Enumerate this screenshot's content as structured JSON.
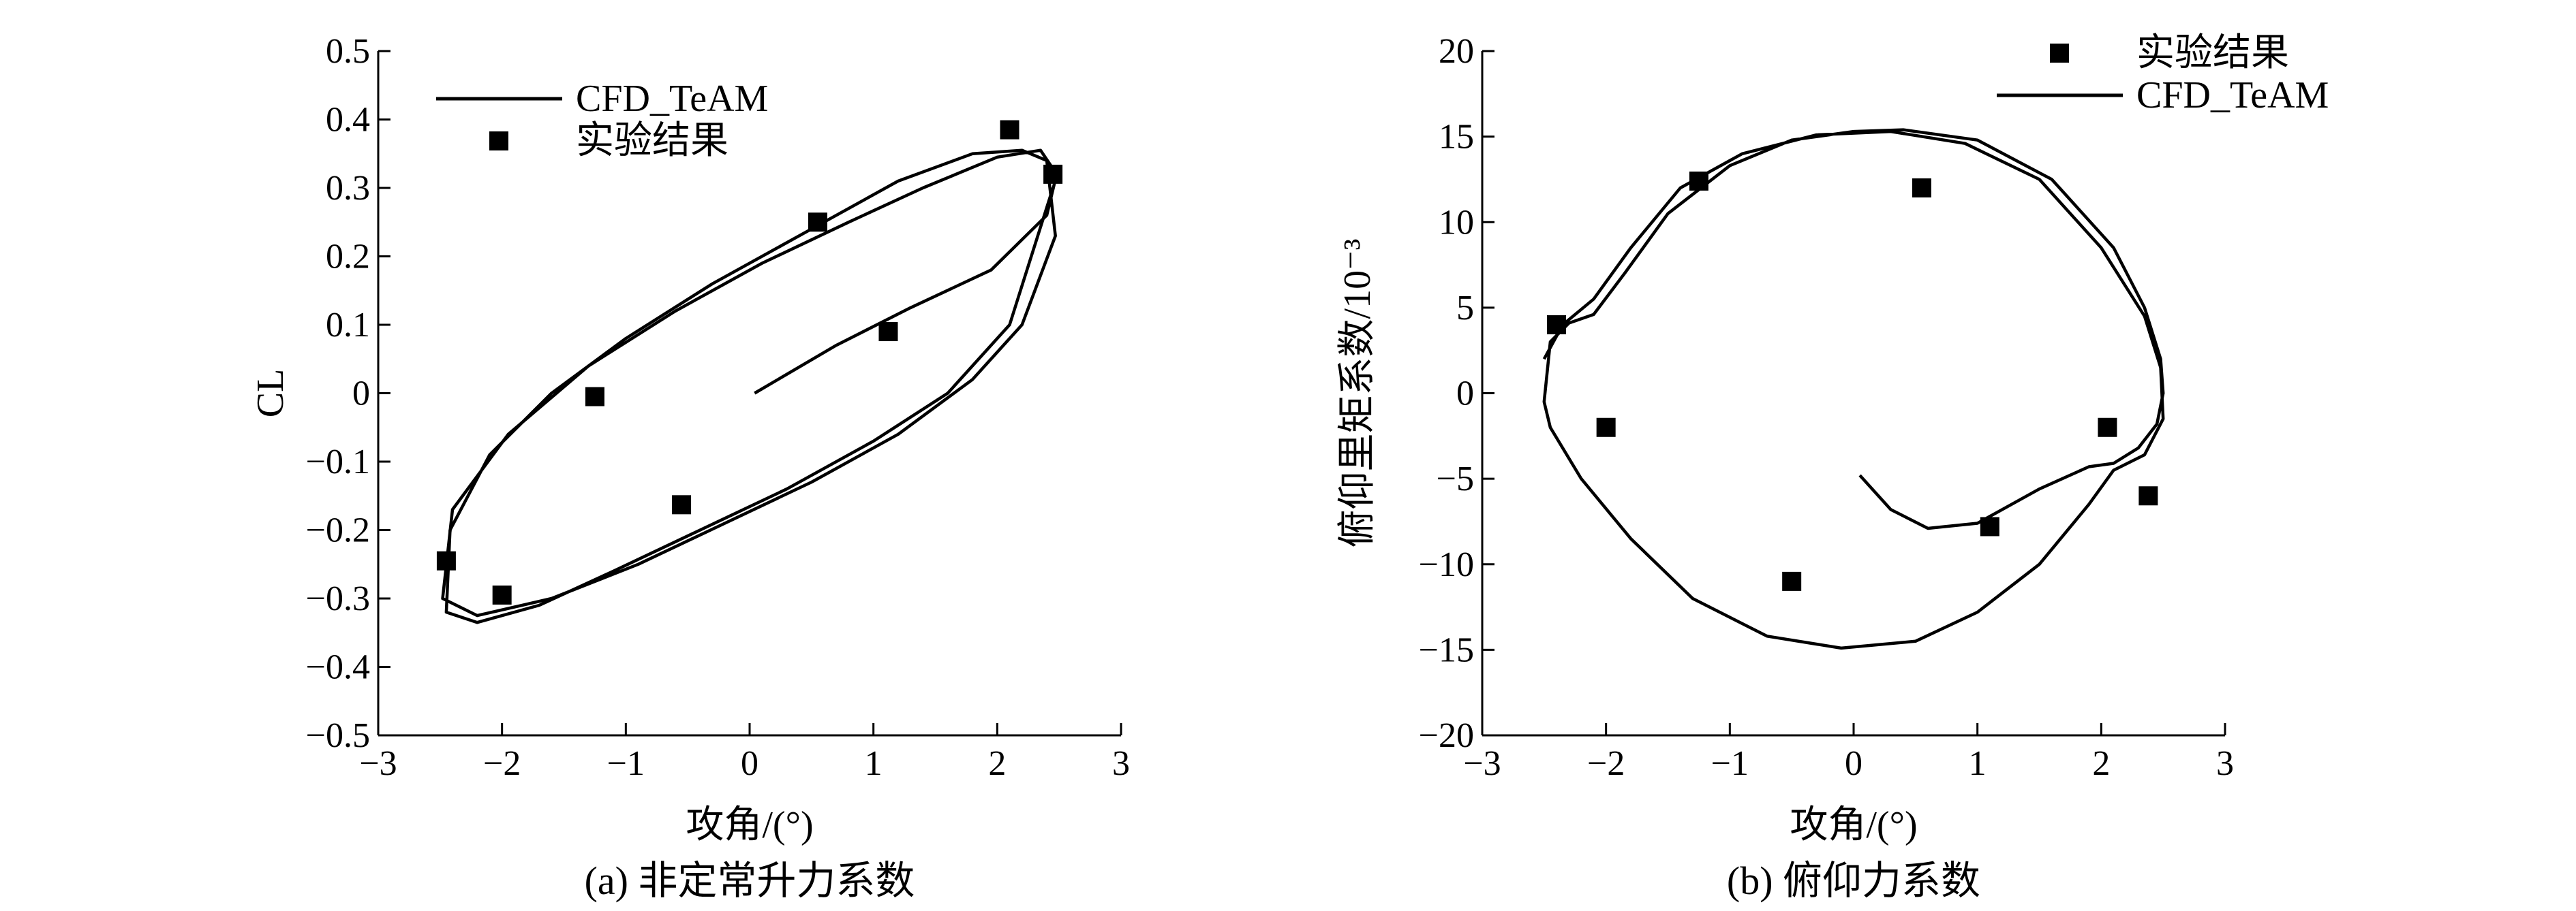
{
  "chart_data": [
    {
      "type": "line",
      "caption": "(a) 非定常升力系数",
      "xlabel": "攻角/(°)",
      "ylabel": "CL",
      "xlim": [
        -3,
        3
      ],
      "ylim": [
        -0.5,
        0.5
      ],
      "x_ticks": [
        -3,
        -2,
        -1,
        0,
        1,
        2,
        3
      ],
      "x_tick_labels": [
        "−3",
        "−2",
        "−1",
        "0",
        "1",
        "2",
        "3"
      ],
      "y_ticks": [
        0.5,
        0.4,
        0.3,
        0.2,
        0.1,
        0,
        -0.1,
        -0.2,
        -0.3,
        -0.4,
        -0.5
      ],
      "y_tick_labels": [
        "0.5",
        "0.4",
        "0.3",
        "0.2",
        "0.1",
        "0",
        "−0.1",
        "−0.2",
        "−0.3",
        "−0.4",
        "−0.5"
      ],
      "legend": [
        "CFD_TeAM",
        "实验结果"
      ],
      "legend_position": "top-left",
      "series": [
        {
          "name": "CFD_TeAM",
          "style": "line",
          "x": [
            0.04,
            0.7,
            1.3,
            1.95,
            2.4,
            2.48,
            2.35,
            2.0,
            1.4,
            0.8,
            0.1,
            -0.6,
            -1.3,
            -1.95,
            -2.4,
            -2.48,
            -2.2,
            -1.6,
            -0.9,
            -0.2,
            0.5,
            1.2,
            1.8,
            2.2,
            2.47,
            2.4,
            2.2,
            1.8,
            1.2,
            0.5,
            -0.3,
            -1.0,
            -1.6,
            -2.1,
            -2.42,
            -2.45,
            -2.2,
            -1.7,
            -1.1,
            -0.4,
            0.3,
            1.0,
            1.6,
            2.1,
            2.45
          ],
          "y": [
            0.0,
            0.07,
            0.125,
            0.18,
            0.26,
            0.32,
            0.355,
            0.345,
            0.3,
            0.25,
            0.19,
            0.12,
            0.04,
            -0.06,
            -0.17,
            -0.3,
            -0.325,
            -0.3,
            -0.25,
            -0.19,
            -0.13,
            -0.06,
            0.02,
            0.1,
            0.23,
            0.34,
            0.355,
            0.35,
            0.31,
            0.24,
            0.16,
            0.08,
            0.0,
            -0.09,
            -0.2,
            -0.32,
            -0.335,
            -0.31,
            -0.26,
            -0.2,
            -0.14,
            -0.07,
            0.0,
            0.1,
            0.3
          ]
        },
        {
          "name": "实验结果",
          "style": "markers",
          "x": [
            -2.45,
            -2.0,
            -1.25,
            -0.55,
            0.55,
            1.12,
            2.1,
            2.45
          ],
          "y": [
            -0.245,
            -0.295,
            -0.005,
            -0.163,
            0.25,
            0.09,
            0.385,
            0.32
          ]
        }
      ]
    },
    {
      "type": "line",
      "caption": "(b) 俯仰力系数",
      "xlabel": "攻角/(°)",
      "ylabel": "俯仰里矩系数/10⁻³",
      "xlim": [
        -3,
        3
      ],
      "ylim": [
        -20,
        20
      ],
      "x_ticks": [
        -3,
        -2,
        -1,
        0,
        1,
        2,
        3
      ],
      "x_tick_labels": [
        "−3",
        "−2",
        "−1",
        "0",
        "1",
        "2",
        "3"
      ],
      "y_ticks": [
        20,
        15,
        10,
        5,
        0,
        -5,
        -10,
        -15,
        -20
      ],
      "y_tick_labels": [
        "20",
        "15",
        "10",
        "5",
        "0",
        "−5",
        "−10",
        "−15",
        "−20"
      ],
      "legend": [
        "实验结果",
        "CFD_TeAM"
      ],
      "legend_position": "top-right",
      "series": [
        {
          "name": "CFD_TeAM",
          "style": "line",
          "x": [
            0.05,
            0.3,
            0.6,
            1.0,
            1.5,
            1.9,
            2.1,
            2.3,
            2.45,
            2.5,
            2.48,
            2.35,
            2.1,
            1.6,
            1.0,
            0.4,
            0.0,
            -0.5,
            -1.0,
            -1.5,
            -1.85,
            -2.1,
            -2.3,
            -2.45,
            -2.5,
            -2.45,
            -2.2,
            -1.8,
            -1.3,
            -0.7,
            -0.1,
            0.5,
            1.0,
            1.5,
            1.9,
            2.1,
            2.35,
            2.5,
            2.48,
            2.35,
            2.0,
            1.5,
            0.9,
            0.3,
            -0.3,
            -0.9,
            -1.4,
            -1.8,
            -2.1,
            -2.35,
            -2.5
          ],
          "y": [
            -4.8,
            -6.8,
            -7.9,
            -7.6,
            -5.6,
            -4.3,
            -4.1,
            -3.2,
            -1.8,
            0.0,
            2.0,
            5.0,
            8.5,
            12.5,
            14.8,
            15.4,
            15.3,
            14.8,
            13.3,
            10.5,
            7.0,
            4.6,
            4.1,
            3.0,
            -0.5,
            -2.0,
            -5.0,
            -8.5,
            -12.0,
            -14.2,
            -14.9,
            -14.5,
            -12.8,
            -10.0,
            -6.5,
            -4.5,
            -3.6,
            -1.5,
            1.5,
            4.5,
            8.5,
            12.5,
            14.6,
            15.3,
            15.1,
            14.0,
            12.0,
            8.5,
            5.5,
            4.0,
            2.0
          ]
        },
        {
          "name": "实验结果",
          "style": "markers",
          "x": [
            -2.4,
            -2.0,
            -1.25,
            -0.5,
            0.55,
            1.1,
            2.05,
            2.38
          ],
          "y": [
            4.0,
            -2.0,
            12.4,
            -11.0,
            12.0,
            -7.8,
            -2.0,
            -6.0
          ]
        }
      ]
    }
  ]
}
